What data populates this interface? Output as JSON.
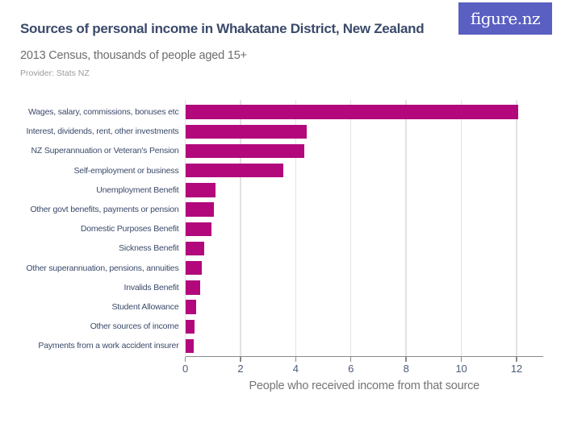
{
  "header": {
    "title": "Sources of personal income in Whakatane District, New Zealand",
    "subtitle": "2013 Census, thousands of people aged 15+",
    "provider": "Provider: Stats NZ"
  },
  "logo": {
    "text": "figure.nz"
  },
  "colors": {
    "background": "#ffffff",
    "bar": "#b2087c",
    "title_text": "#3b4a6a",
    "subtitle_text": "#6d6d6d",
    "provider_text": "#9b9b9b",
    "category_label": "#3b4a6a",
    "tick_label": "#4d5c7a",
    "axis_title": "#757575",
    "axis_line": "#8a8a8a",
    "gridline": "#e2e2e2",
    "logo_bg": "#5a5fc2",
    "logo_text": "#ffffff"
  },
  "chart_data": {
    "type": "bar",
    "orientation": "horizontal",
    "title": "Sources of personal income in Whakatane District, New Zealand",
    "subtitle": "2013 Census, thousands of people aged 15+",
    "unit": "thousands of people aged 15+",
    "xlabel": "People who received income from that source",
    "categories": [
      "Wages, salary, commissions, bonuses etc",
      "Interest, dividends, rent, other investments",
      "NZ Superannuation or Veteran's Pension",
      "Self-employment or business",
      "Unemployment Benefit",
      "Other govt benefits, payments or pension",
      "Domestic Purposes Benefit",
      "Sickness Benefit",
      "Other superannuation, pensions, annuities",
      "Invalids Benefit",
      "Student Allowance",
      "Other sources of income",
      "Payments from a work accident insurer"
    ],
    "values": [
      12.05,
      4.4,
      4.3,
      3.55,
      1.1,
      1.05,
      0.95,
      0.7,
      0.6,
      0.55,
      0.4,
      0.35,
      0.3
    ],
    "xlim": [
      0,
      13
    ],
    "xticks": [
      0,
      2,
      4,
      6,
      8,
      10,
      12
    ],
    "grid": true,
    "legend": false
  }
}
